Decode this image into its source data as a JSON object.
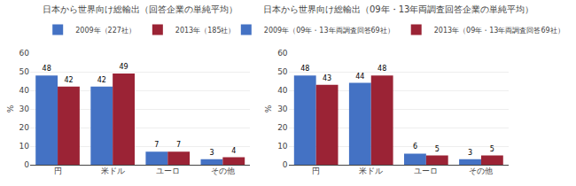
{
  "chart_data": [
    {
      "type": "bar",
      "title": "日本から世界向け総輸出（回答企業の単純平均）",
      "categories": [
        "円",
        "米ドル",
        "ユーロ",
        "その他"
      ],
      "series": [
        {
          "name": "2009年（227社）",
          "color": "#4472C4",
          "values": [
            48,
            42,
            7,
            3
          ]
        },
        {
          "name": "2013年（185社）",
          "color": "#9B2335",
          "values": [
            42,
            49,
            7,
            4
          ]
        }
      ],
      "ylabel": "%",
      "ylim": [
        0,
        60
      ],
      "yticks": [
        0,
        10,
        20,
        30,
        40,
        50,
        60
      ],
      "grid": true,
      "legend": "top",
      "data_labels": true
    },
    {
      "type": "bar",
      "title": "日本から世界向け総輸出（09年・13年両調査回答企業の単純平均）",
      "categories": [
        "円",
        "米ドル",
        "ユーロ",
        "その他"
      ],
      "series": [
        {
          "name": "2009年（09年・13年両調査回答69社）",
          "color": "#4472C4",
          "values": [
            48,
            44,
            6,
            3
          ]
        },
        {
          "name": "2013年（09年・13年両調査回答69社）",
          "color": "#9B2335",
          "values": [
            43,
            48,
            5,
            5
          ]
        }
      ],
      "ylabel": "%",
      "ylim": [
        0,
        60
      ],
      "yticks": [
        0,
        10,
        20,
        30,
        40,
        50,
        60
      ],
      "grid": true,
      "legend": "top",
      "data_labels": true
    }
  ]
}
